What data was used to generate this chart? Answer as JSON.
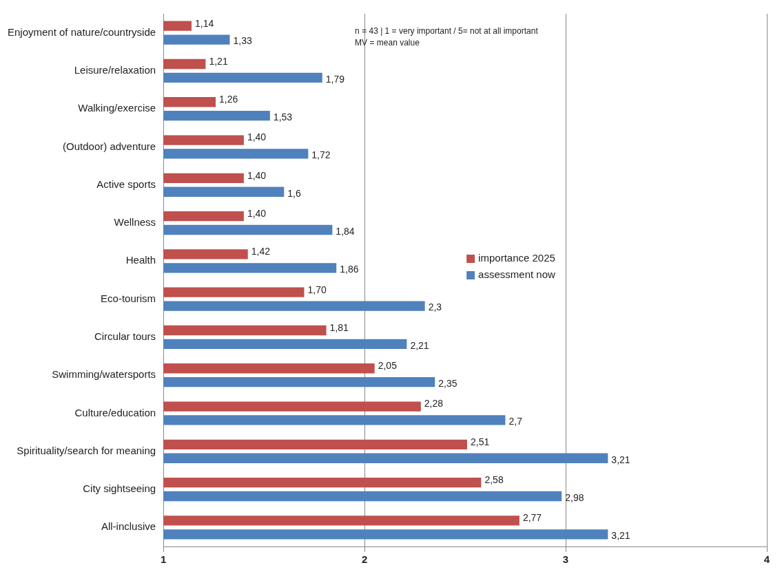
{
  "chart_data": {
    "type": "bar",
    "orientation": "horizontal",
    "categories": [
      "Enjoyment of nature/countryside",
      "Leisure/relaxation",
      "Walking/exercise",
      "(Outdoor) adventure",
      "Active sports",
      "Wellness",
      "Health",
      "Eco-tourism",
      "Circular tours",
      "Swimming/watersports",
      "Culture/education",
      "Spirituality/search for meaning",
      "City sightseeing",
      "All-inclusive"
    ],
    "series": [
      {
        "name": "importance 2025",
        "color": "#c0504d",
        "values": [
          1.14,
          1.21,
          1.26,
          1.4,
          1.4,
          1.4,
          1.42,
          1.7,
          1.81,
          2.05,
          2.28,
          2.51,
          2.58,
          2.77
        ],
        "value_labels": [
          "1,14",
          "1,21",
          "1,26",
          "1,40",
          "1,40",
          "1,40",
          "1,42",
          "1,70",
          "1,81",
          "2,05",
          "2,28",
          "2,51",
          "2,58",
          "2,77"
        ]
      },
      {
        "name": "assessment now",
        "color": "#4f81bd",
        "values": [
          1.33,
          1.79,
          1.53,
          1.72,
          1.6,
          1.84,
          1.86,
          2.3,
          2.21,
          2.35,
          2.7,
          3.21,
          2.98,
          3.21
        ],
        "value_labels": [
          "1,33",
          "1,79",
          "1,53",
          "1,72",
          "1,6",
          "1,84",
          "1,86",
          "2,3",
          "2,21",
          "2,35",
          "2,7",
          "3,21",
          "2,98",
          "3,21"
        ]
      }
    ],
    "xlim": [
      1,
      4
    ],
    "xticks": [
      1,
      2,
      3,
      4
    ],
    "grid": "x",
    "legend": "right",
    "annotations": [
      "n = 43 | 1 = very important / 5= not at all important",
      "MV = mean value"
    ]
  }
}
